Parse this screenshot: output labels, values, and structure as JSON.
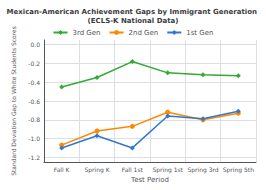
{
  "chart_data": {
    "type": "line",
    "title": "Mexican-American Achievement Gaps by Immigrant Generation (ECLS-K National Data)",
    "x_label": "Test Period",
    "y_label": "Standard Deviation Gap to White Students Scores",
    "categories": [
      "Fall K",
      "Spring K",
      "Fall 1st",
      "Spring 1st",
      "Spring 3rd",
      "Spring 5th"
    ],
    "series": [
      {
        "name": "3rd Gen",
        "color": "#33aa33",
        "marker": "diamond",
        "values": [
          -0.45,
          -0.35,
          -0.18,
          -0.3,
          -0.32,
          -0.33
        ]
      },
      {
        "name": "2nd Gen",
        "color": "#ff8800",
        "marker": "circle",
        "values": [
          -1.07,
          -0.92,
          -0.87,
          -0.72,
          -0.8,
          -0.73
        ]
      },
      {
        "name": "1st Gen",
        "color": "#3377cc",
        "marker": "diamond",
        "values": [
          -1.1,
          -0.97,
          -1.1,
          -0.76,
          -0.79,
          -0.71
        ]
      }
    ],
    "ylim": [
      -1.25,
      0.05
    ],
    "yticks": [
      -1.2,
      {
        "value": -1.0,
        "label": "-1.0"
      },
      -0.8,
      -0.6,
      -0.4,
      -0.2,
      {
        "value": 0.0,
        "label": "0.0"
      }
    ],
    "grid": true,
    "legend": "top"
  }
}
